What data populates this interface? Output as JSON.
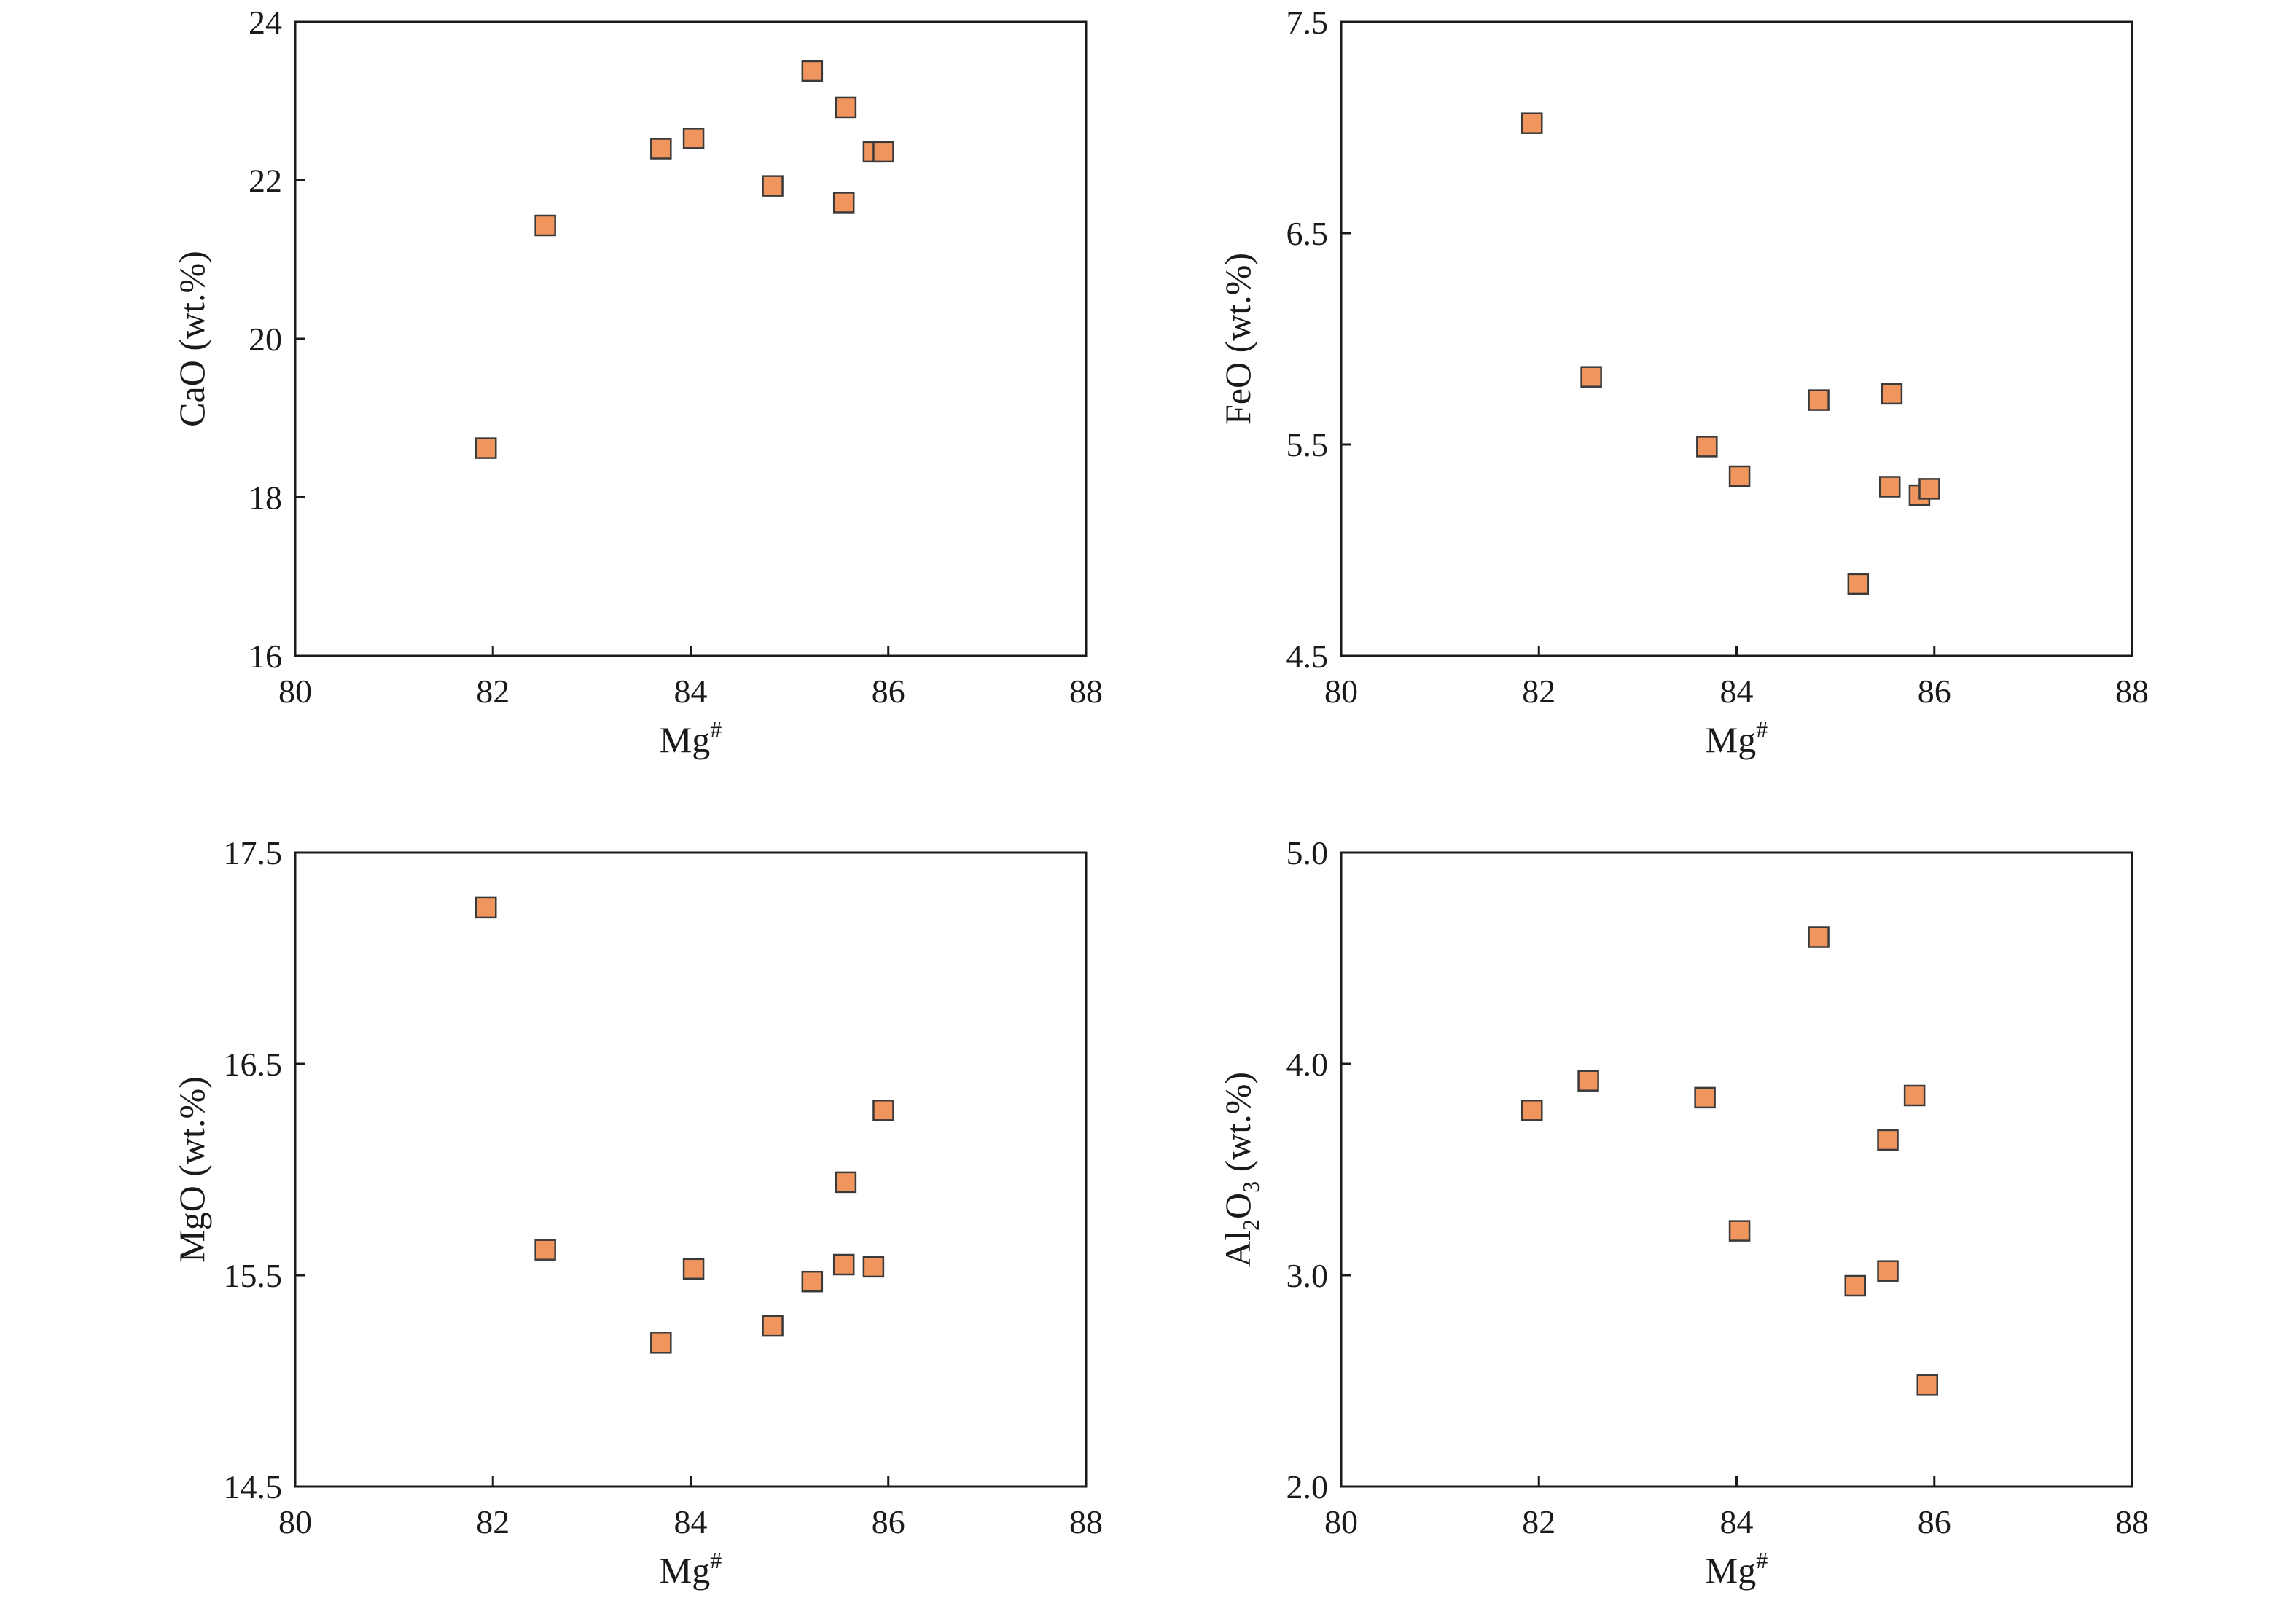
{
  "marker_color": "#f0955e",
  "marker_stroke": "#3a3a3a",
  "chart_data": [
    {
      "type": "scatter",
      "xlabel_main": "Mg",
      "xlabel_sup": "#",
      "ylabel_pre": "CaO (wt.%)",
      "ylabel_sub": "",
      "ylabel_post": "",
      "xlim": [
        80,
        88
      ],
      "ylim": [
        16,
        24
      ],
      "xticks": [
        80,
        82,
        84,
        86,
        88
      ],
      "yticks": [
        16,
        18,
        20,
        22,
        24
      ],
      "ytick_labels": [
        "16",
        "18",
        "20",
        "22",
        "24"
      ],
      "points": [
        {
          "x": 81.93,
          "y": 18.62
        },
        {
          "x": 82.53,
          "y": 21.43
        },
        {
          "x": 83.7,
          "y": 22.4
        },
        {
          "x": 84.03,
          "y": 22.53
        },
        {
          "x": 84.83,
          "y": 21.93
        },
        {
          "x": 85.23,
          "y": 23.38
        },
        {
          "x": 85.57,
          "y": 22.92
        },
        {
          "x": 85.55,
          "y": 21.72
        },
        {
          "x": 85.85,
          "y": 22.36
        },
        {
          "x": 85.95,
          "y": 22.36
        }
      ]
    },
    {
      "type": "scatter",
      "xlabel_main": "Mg",
      "xlabel_sup": "#",
      "ylabel_pre": "FeO (wt.%)",
      "ylabel_sub": "",
      "ylabel_post": "",
      "xlim": [
        80,
        88
      ],
      "ylim": [
        4.5,
        7.5
      ],
      "xticks": [
        80,
        82,
        84,
        86,
        88
      ],
      "yticks": [
        4.5,
        5.5,
        6.5,
        7.5
      ],
      "ytick_labels": [
        "4.5",
        "5.5",
        "6.5",
        "7.5"
      ],
      "points": [
        {
          "x": 81.93,
          "y": 7.02
        },
        {
          "x": 82.53,
          "y": 5.82
        },
        {
          "x": 83.7,
          "y": 5.49
        },
        {
          "x": 84.03,
          "y": 5.35
        },
        {
          "x": 84.83,
          "y": 5.71
        },
        {
          "x": 85.23,
          "y": 4.84
        },
        {
          "x": 85.57,
          "y": 5.74
        },
        {
          "x": 85.55,
          "y": 5.3
        },
        {
          "x": 85.85,
          "y": 5.26
        },
        {
          "x": 85.95,
          "y": 5.29
        }
      ]
    },
    {
      "type": "scatter",
      "xlabel_main": "Mg",
      "xlabel_sup": "#",
      "ylabel_pre": "MgO (wt.%)",
      "ylabel_sub": "",
      "ylabel_post": "",
      "xlim": [
        80,
        88
      ],
      "ylim": [
        14.5,
        17.5
      ],
      "xticks": [
        80,
        82,
        84,
        86,
        88
      ],
      "yticks": [
        14.5,
        15.5,
        16.5,
        17.5
      ],
      "ytick_labels": [
        "14.5",
        "15.5",
        "16.5",
        "17.5"
      ],
      "points": [
        {
          "x": 81.93,
          "y": 17.24
        },
        {
          "x": 82.53,
          "y": 15.62
        },
        {
          "x": 83.7,
          "y": 15.18
        },
        {
          "x": 84.03,
          "y": 15.53
        },
        {
          "x": 84.83,
          "y": 15.26
        },
        {
          "x": 85.23,
          "y": 15.47
        },
        {
          "x": 85.57,
          "y": 15.94
        },
        {
          "x": 85.55,
          "y": 15.55
        },
        {
          "x": 85.85,
          "y": 15.54
        },
        {
          "x": 85.95,
          "y": 16.28
        }
      ]
    },
    {
      "type": "scatter",
      "xlabel_main": "Mg",
      "xlabel_sup": "#",
      "ylabel_pre": "Al",
      "ylabel_sub": "2",
      "ylabel_post": "O",
      "ylabel_sub2": "3",
      "ylabel_tail": " (wt.%)",
      "xlim": [
        80,
        88
      ],
      "ylim": [
        2.0,
        5.0
      ],
      "xticks": [
        80,
        82,
        84,
        86,
        88
      ],
      "yticks": [
        2.0,
        3.0,
        4.0,
        5.0
      ],
      "ytick_labels": [
        "2.0",
        "3.0",
        "4.0",
        "5.0"
      ],
      "points": [
        {
          "x": 81.93,
          "y": 3.78
        },
        {
          "x": 82.5,
          "y": 3.92
        },
        {
          "x": 83.68,
          "y": 3.84
        },
        {
          "x": 84.03,
          "y": 3.21
        },
        {
          "x": 84.83,
          "y": 4.6
        },
        {
          "x": 85.2,
          "y": 2.95
        },
        {
          "x": 85.53,
          "y": 3.64
        },
        {
          "x": 85.53,
          "y": 3.02
        },
        {
          "x": 85.8,
          "y": 3.85
        },
        {
          "x": 85.93,
          "y": 2.48
        }
      ]
    }
  ]
}
